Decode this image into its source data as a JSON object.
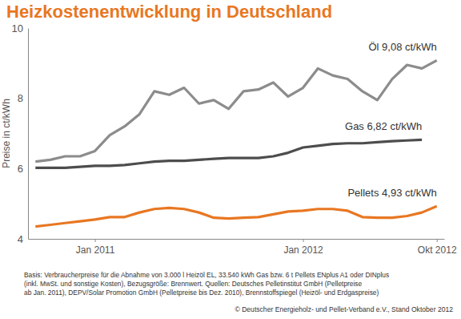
{
  "chart_data": {
    "type": "line",
    "title": "Heizkostenentwicklung in Deutschland",
    "y_label": "Preise in ct/kWh",
    "categories": [
      null,
      null,
      null,
      null,
      "Jan 2011",
      null,
      null,
      null,
      null,
      null,
      null,
      null,
      null,
      null,
      null,
      null,
      null,
      null,
      "Jan 2012",
      null,
      null,
      null,
      null,
      null,
      null,
      null,
      null,
      "Okt 2012"
    ],
    "series": [
      {
        "name": "Öl",
        "color": "#8c8c8c",
        "values": [
          6.2,
          6.25,
          6.35,
          6.35,
          6.5,
          6.95,
          7.2,
          7.55,
          8.2,
          8.1,
          8.3,
          7.85,
          7.95,
          7.7,
          8.2,
          8.25,
          8.45,
          8.05,
          8.3,
          8.85,
          8.65,
          8.55,
          8.2,
          7.95,
          8.55,
          8.95,
          8.85,
          9.08
        ],
        "value_labels": [
          null,
          null,
          null,
          null,
          null,
          null,
          null,
          null,
          null,
          null,
          null,
          null,
          null,
          null,
          null,
          null,
          null,
          null,
          null,
          null,
          null,
          null,
          null,
          null,
          null,
          null,
          null,
          "9,08 ct/kWh"
        ]
      },
      {
        "name": "Gas",
        "color": "#4d4d4d",
        "values": [
          6.02,
          6.02,
          6.02,
          6.05,
          6.08,
          6.08,
          6.1,
          6.15,
          6.2,
          6.22,
          6.22,
          6.25,
          6.28,
          6.3,
          6.3,
          6.3,
          6.35,
          6.45,
          6.6,
          6.65,
          6.7,
          6.72,
          6.72,
          6.75,
          6.78,
          6.8,
          6.82,
          null
        ],
        "value_labels": [
          null,
          null,
          null,
          null,
          null,
          null,
          null,
          null,
          null,
          null,
          null,
          null,
          null,
          null,
          null,
          null,
          null,
          null,
          null,
          null,
          null,
          null,
          null,
          null,
          null,
          null,
          "6,82 ct/kWh",
          null
        ]
      },
      {
        "name": "Pellets",
        "color": "#e87722",
        "values": [
          4.35,
          4.4,
          4.45,
          4.5,
          4.55,
          4.62,
          4.62,
          4.75,
          4.85,
          4.88,
          4.85,
          4.75,
          4.6,
          4.58,
          4.6,
          4.62,
          4.7,
          4.78,
          4.8,
          4.85,
          4.85,
          4.8,
          4.62,
          4.6,
          4.6,
          4.65,
          4.75,
          4.93
        ],
        "value_labels": [
          null,
          null,
          null,
          null,
          null,
          null,
          null,
          null,
          null,
          null,
          null,
          null,
          null,
          null,
          null,
          null,
          null,
          null,
          null,
          null,
          null,
          null,
          null,
          null,
          null,
          null,
          null,
          "4,93 ct/kWh"
        ]
      }
    ],
    "ylim": [
      4,
      10
    ],
    "yticks": [
      4,
      6,
      8,
      10
    ],
    "grid": false,
    "data_labels": true,
    "notes": [
      "Basis: Verbraucherpreise für die Abnahme von 3.000 l Heizöl EL, 33.540 kWh Gas bzw. 6 t Pellets ENplus A1 oder DINplus",
      "(inkl. MwSt. und sonstige Kosten), Bezugsgröße: Brennwert. Quellen: Deutsches Pelletinstitut GmbH (Pelletpreise",
      "ab Jan. 2011), DEPV/Solar Promotion GmbH (Pelletpreise bis Dez. 2010), Brennstoffspiegel (Heizöl- und Erdgaspreise)"
    ],
    "copyright": "© Deutscher Energieholz- und Pellet-Verband e.V., Stand Oktober 2012"
  }
}
